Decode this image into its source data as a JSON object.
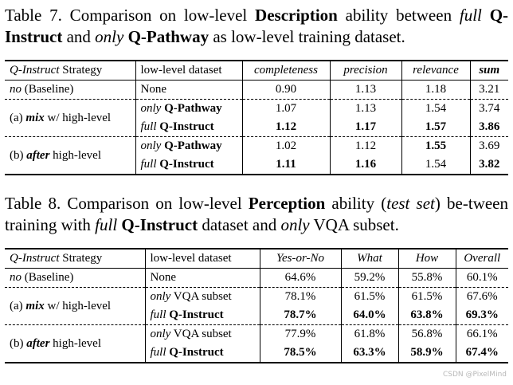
{
  "table7": {
    "caption": {
      "label": "Table 7.",
      "t1": " Comparison on low-level ",
      "bold1": "Description",
      "t2": " ability between ",
      "it1": "full",
      "t3": " ",
      "bold2": "Q-Instruct",
      "t4": " and ",
      "it2": "only",
      "t5": " ",
      "bold3": "Q-Pathway",
      "t6": " as low-level training dataset."
    },
    "headers": {
      "strategy_italic": "Q-Instruct",
      "strategy_rest": " Strategy",
      "dataset": "low-level dataset",
      "completeness": "completeness",
      "precision": "precision",
      "relevance": "relevance",
      "sum": "sum"
    },
    "rows": [
      {
        "strategy_it": "no",
        "strategy_rest": " (Baseline)",
        "dataset": "None",
        "completeness": "0.90",
        "precision": "1.13",
        "relevance": "1.18",
        "sum": "3.21"
      },
      {
        "strategy_pre": "(a) ",
        "strategy_bi": "mix",
        "strategy_rest": " w/ high-level",
        "dataset_it": "only",
        "dataset_b": "Q-Pathway",
        "completeness": "1.07",
        "precision": "1.13",
        "relevance": "1.54",
        "sum": "3.74"
      },
      {
        "dataset_it": "full",
        "dataset_b": "Q-Instruct",
        "completeness": "1.12",
        "precision": "1.17",
        "relevance": "1.57",
        "sum": "3.86"
      },
      {
        "strategy_pre": "(b) ",
        "strategy_bi": "after",
        "strategy_rest": " high-level",
        "dataset_it": "only",
        "dataset_b": "Q-Pathway",
        "completeness": "1.02",
        "precision": "1.12",
        "relevance": "1.55",
        "sum": "3.69"
      },
      {
        "dataset_it": "full",
        "dataset_b": "Q-Instruct",
        "completeness": "1.11",
        "precision": "1.16",
        "relevance": "1.54",
        "sum": "3.82"
      }
    ]
  },
  "table8": {
    "caption": {
      "label": "Table 8.",
      "t1": " Comparison on low-level ",
      "bold1": "Perception",
      "t2": " ability (",
      "it1": "test set",
      "t3": ") be-tween training with ",
      "it2": "full",
      "t4": " ",
      "bold2": "Q-Instruct",
      "t5": " dataset and ",
      "it3": "only",
      "t6": " VQA subset."
    },
    "headers": {
      "strategy_italic": "Q-Instruct",
      "strategy_rest": " Strategy",
      "dataset": "low-level dataset",
      "yesno": "Yes-or-No",
      "what": "What",
      "how": "How",
      "overall": "Overall"
    },
    "rows": [
      {
        "strategy_it": "no",
        "strategy_rest": " (Baseline)",
        "dataset": "None",
        "yesno": "64.6%",
        "what": "59.2%",
        "how": "55.8%",
        "overall": "60.1%"
      },
      {
        "strategy_pre": "(a) ",
        "strategy_bi": "mix",
        "strategy_rest": " w/ high-level",
        "dataset_it": "only",
        "dataset_rest": " VQA subset",
        "yesno": "78.1%",
        "what": "61.5%",
        "how": "61.5%",
        "overall": "67.6%"
      },
      {
        "dataset_it": "full",
        "dataset_b": "Q-Instruct",
        "yesno": "78.7%",
        "what": "64.0%",
        "how": "63.8%",
        "overall": "69.3%"
      },
      {
        "strategy_pre": "(b) ",
        "strategy_bi": "after",
        "strategy_rest": " high-level",
        "dataset_it": "only",
        "dataset_rest": " VQA subset",
        "yesno": "77.9%",
        "what": "61.8%",
        "how": "56.8%",
        "overall": "66.1%"
      },
      {
        "dataset_it": "full",
        "dataset_b": "Q-Instruct",
        "yesno": "78.5%",
        "what": "63.3%",
        "how": "58.9%",
        "overall": "67.4%"
      }
    ]
  },
  "watermark": "CSDN @PixelMind"
}
